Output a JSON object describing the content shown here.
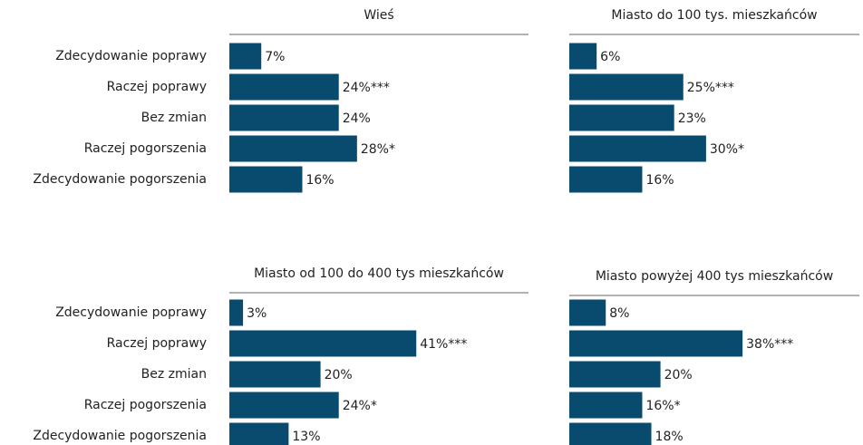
{
  "chart_data": [
    {
      "type": "bar",
      "title": "Wieś",
      "categories": [
        "Zdecydowanie poprawy",
        "Raczej poprawy",
        "Bez zmian",
        "Raczej pogorszenia",
        "Zdecydowanie pogorszenia"
      ],
      "values": [
        7,
        24,
        24,
        28,
        16
      ],
      "value_labels": [
        "7%",
        "24%***",
        "24%",
        "28%*",
        "16%"
      ],
      "color": "#084b6f"
    },
    {
      "type": "bar",
      "title": "Miasto do 100 tys. mieszkańców",
      "values": [
        6,
        25,
        23,
        30,
        16
      ],
      "value_labels": [
        "6%",
        "25%***",
        "23%",
        "30%*",
        "16%"
      ],
      "color": "#084b6f"
    },
    {
      "type": "bar",
      "title": "Miasto od 100 do 400 tys mieszkańców",
      "categories": [
        "Zdecydowanie poprawy",
        "Raczej poprawy",
        "Bez zmian",
        "Raczej pogorszenia",
        "Zdecydowanie pogorszenia"
      ],
      "values": [
        3,
        41,
        20,
        24,
        13
      ],
      "value_labels": [
        "3%",
        "41%***",
        "20%",
        "24%*",
        "13%"
      ],
      "color": "#084b6f"
    },
    {
      "type": "bar",
      "title": "Miasto powyżej 400 tys mieszkańców",
      "values": [
        8,
        38,
        20,
        16,
        18
      ],
      "value_labels": [
        "8%",
        "38%***",
        "20%",
        "16%*",
        "18%"
      ],
      "color": "#084b6f"
    }
  ]
}
